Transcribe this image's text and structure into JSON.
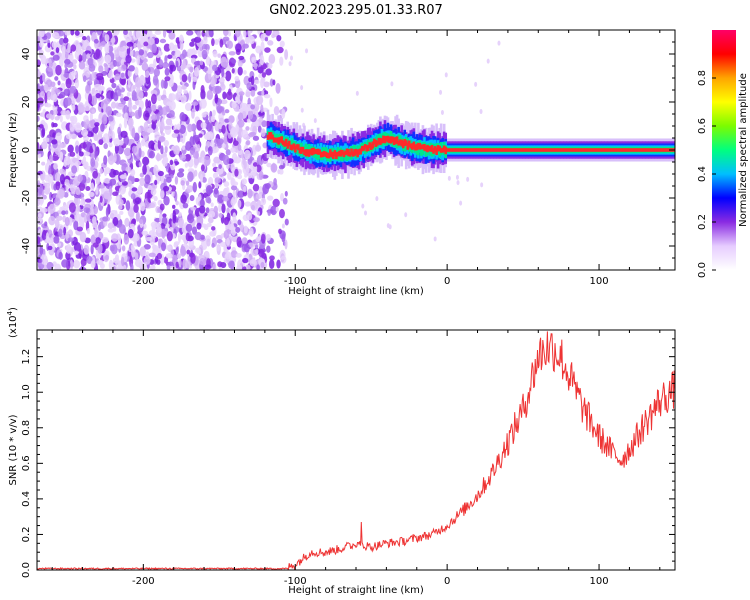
{
  "figure_title": "GN02.2023.295.01.33.R07",
  "chart_data": [
    {
      "type": "heatmap",
      "xlabel": "Height of straight line (km)",
      "ylabel": "Frequency (Hz)",
      "xlim": [
        -270,
        150
      ],
      "ylim": [
        -50,
        50
      ],
      "x_ticks": [
        -200,
        -100,
        0,
        100
      ],
      "y_ticks": [
        -40,
        -20,
        0,
        20,
        40
      ],
      "x_tick_labels": [
        "-200",
        "-100",
        "0",
        "100"
      ],
      "y_tick_labels": [
        "-40",
        "-20",
        "0",
        "20",
        "40"
      ],
      "noise_region_x": [
        -270,
        -115
      ],
      "ridge": {
        "x": [
          -118,
          -110,
          -100,
          -90,
          -80,
          -70,
          -60,
          -50,
          -45,
          -40,
          -30,
          -20,
          -10,
          0,
          50,
          100,
          150
        ],
        "y": [
          6,
          4,
          1,
          -1,
          -2,
          -1.5,
          -1,
          2,
          4,
          5,
          3,
          1,
          0.3,
          0,
          0,
          0,
          0
        ]
      },
      "colorbar": {
        "label": "Normalized spectral amplitude",
        "range": [
          0,
          1
        ],
        "ticks": [
          0.0,
          0.2,
          0.4,
          0.6,
          0.8
        ],
        "tick_labels": [
          "0.0",
          "0.2",
          "0.4",
          "0.6",
          "0.8"
        ],
        "colors": [
          "#ffffff",
          "#e6ccff",
          "#8a2be2",
          "#0000ff",
          "#00bfff",
          "#00ff7f",
          "#7cfc00",
          "#ffff00",
          "#ffa500",
          "#ff0000",
          "#ff0066"
        ]
      }
    },
    {
      "type": "line",
      "xlabel": "Height of straight line (km)",
      "ylabel": "SNR (10 * v/v)",
      "yscale_note": "(x10",
      "yscale_exp": "4",
      "yscale_close": ")",
      "xlim": [
        -270,
        150
      ],
      "ylim": [
        0.0,
        1.35
      ],
      "x_ticks": [
        -200,
        -100,
        0,
        100
      ],
      "y_ticks": [
        0.0,
        0.2,
        0.4,
        0.6,
        0.8,
        1.0,
        1.2
      ],
      "x_tick_labels": [
        "-200",
        "-100",
        "0",
        "100"
      ],
      "y_tick_labels": [
        "0.0",
        "0.2",
        "0.4",
        "0.6",
        "0.8",
        "1.0",
        "1.2"
      ],
      "line_color": "#ee3333",
      "series": [
        {
          "x": [
            -270,
            -250,
            -200,
            -150,
            -110,
            -100,
            -90,
            -80,
            -70,
            -60,
            -50,
            -40,
            -30,
            -20,
            -10,
            0,
            10,
            20,
            30,
            40,
            50,
            55,
            60,
            65,
            70,
            75,
            80,
            90,
            100,
            110,
            115,
            120,
            130,
            140,
            150
          ],
          "values": [
            0.0,
            0.0,
            0.0,
            0.0,
            0.0,
            0.03,
            0.1,
            0.1,
            0.12,
            0.15,
            0.13,
            0.15,
            0.16,
            0.18,
            0.2,
            0.25,
            0.33,
            0.42,
            0.55,
            0.72,
            0.9,
            1.05,
            1.2,
            1.25,
            1.25,
            1.2,
            1.1,
            0.9,
            0.75,
            0.65,
            0.62,
            0.68,
            0.82,
            0.95,
            1.02
          ]
        }
      ]
    }
  ]
}
